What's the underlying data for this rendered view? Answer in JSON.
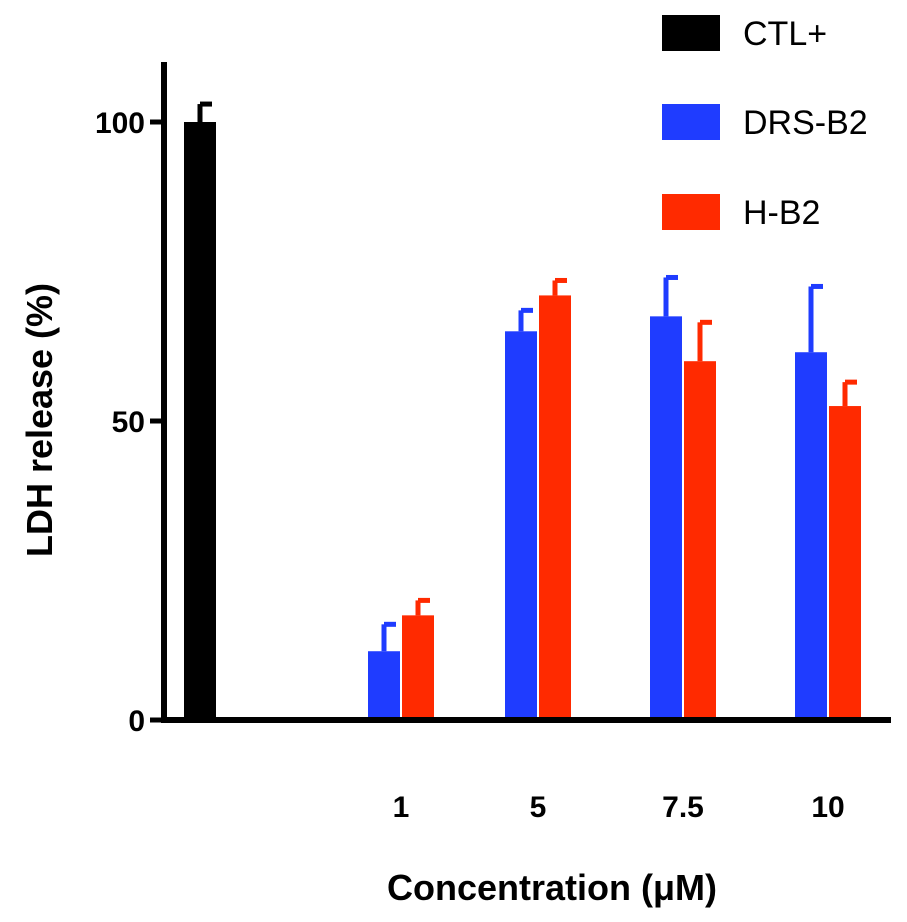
{
  "chart_data": {
    "type": "bar",
    "title": "",
    "xlabel": "Concentration (μM)",
    "ylabel": "LDH release (%)",
    "ylim": [
      0,
      110
    ],
    "yticks": [
      "0",
      "50",
      "100"
    ],
    "control": {
      "name": "CTL+",
      "value": 100,
      "error": 3,
      "color": "#000000"
    },
    "categories": [
      "1",
      "5",
      "7.5",
      "10"
    ],
    "series": [
      {
        "name": "DRS-B2",
        "color": "#1f3cff",
        "values": [
          11.5,
          65,
          67.5,
          61.5
        ],
        "errors": [
          4.5,
          3.5,
          6.5,
          11
        ]
      },
      {
        "name": "H-B2",
        "color": "#ff2a00",
        "values": [
          17.5,
          71,
          60,
          52.5
        ],
        "errors": [
          2.5,
          2.5,
          6.5,
          4
        ]
      }
    ],
    "legend": {
      "position": "top-right"
    }
  }
}
